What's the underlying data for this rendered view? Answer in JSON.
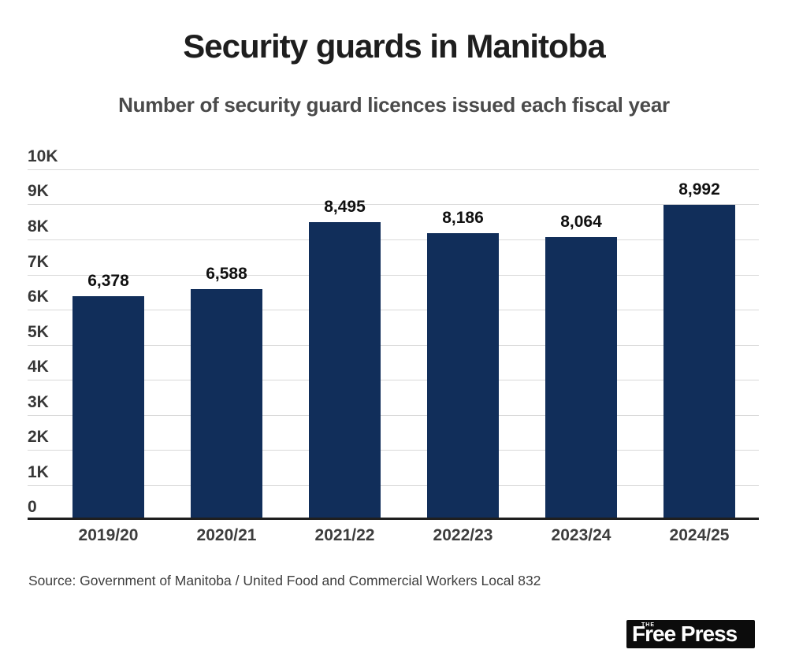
{
  "source_line": "Source: Government of Manitoba / United Food and Commercial Workers Local 832",
  "logo": {
    "the": "THE",
    "name": "Free Press"
  },
  "colors": {
    "bar": "#112e5a",
    "grid": "#d9d9d9",
    "axis": "#1f1f1f",
    "title": "#1e1e1e",
    "subtitle": "#4a4a4a",
    "logo_bg": "#0c0c0c",
    "logo_text": "#ffffff"
  },
  "chart_data": {
    "type": "bar",
    "title": "Security guards in Manitoba",
    "subtitle": "Number of security guard licences issued each fiscal year",
    "categories": [
      "2019/20",
      "2020/21",
      "2021/22",
      "2022/23",
      "2023/24",
      "2024/25"
    ],
    "values": [
      6378,
      6588,
      8495,
      8186,
      8064,
      8992
    ],
    "value_labels": [
      "6,378",
      "6,588",
      "8,495",
      "8,186",
      "8,064",
      "8,992"
    ],
    "xlabel": "",
    "ylabel": "",
    "ylim": [
      0,
      10000
    ],
    "yticks": [
      0,
      1000,
      2000,
      3000,
      4000,
      5000,
      6000,
      7000,
      8000,
      9000,
      10000
    ],
    "ytick_labels": [
      "0",
      "1K",
      "2K",
      "3K",
      "4K",
      "5K",
      "6K",
      "7K",
      "8K",
      "9K",
      "10K"
    ],
    "grid": true,
    "legend": false,
    "gridline_span": "full-width",
    "ytick_position": "above-gridline-left"
  }
}
